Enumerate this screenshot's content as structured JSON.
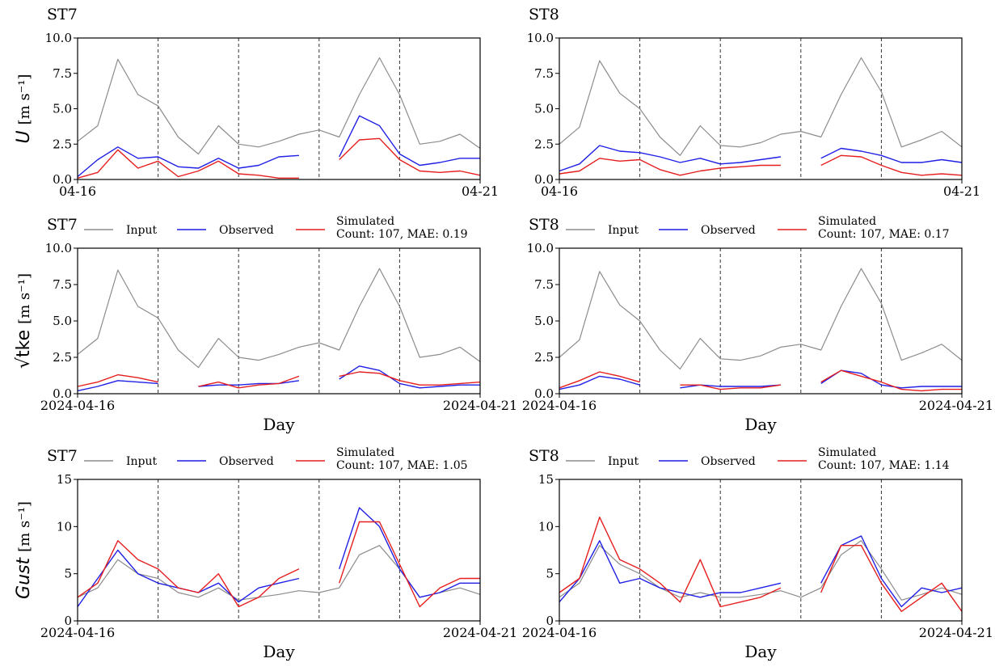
{
  "figure": {
    "x_start": "2024-04-16",
    "x_end": "2024-04-21",
    "vlines_days": [
      1,
      2,
      3,
      4
    ],
    "legend_labels": {
      "input": "Input",
      "observed": "Observed",
      "simulated": "Simulated"
    },
    "colors": {
      "input": "#8c8c8c",
      "observed": "#1f1fe6",
      "simulated": "#e61e1e",
      "frame": "#000000",
      "vline": "#333333"
    }
  },
  "chart_data": [
    {
      "type": "line",
      "row": 0,
      "col": 0,
      "title": "ST7",
      "ylabel_main": "U",
      "ylabel_unit": "[m s⁻¹]",
      "ylim": [
        0,
        10
      ],
      "yticks": [
        "0.0",
        "2.5",
        "5.0",
        "7.5",
        "10.0"
      ],
      "xtick_left": "04-16",
      "xtick_right": "04-21",
      "xlabel": "",
      "legend": false,
      "legend_stats": "",
      "series": [
        {
          "key": "input",
          "x": [
            0,
            0.25,
            0.5,
            0.75,
            1,
            1.25,
            1.5,
            1.75,
            2,
            2.25,
            2.5,
            2.75,
            3,
            3.25,
            3.5,
            3.75,
            4,
            4.25,
            4.5,
            4.75,
            5
          ],
          "y": [
            2.7,
            3.8,
            8.5,
            6.0,
            5.2,
            3.0,
            1.8,
            3.8,
            2.5,
            2.3,
            2.7,
            3.2,
            3.5,
            3.0,
            6.0,
            8.6,
            6.0,
            2.5,
            2.7,
            3.2,
            2.2
          ]
        },
        {
          "key": "observed",
          "x": [
            0,
            0.25,
            0.5,
            0.75,
            1,
            1.25,
            1.5,
            1.75,
            2,
            2.25,
            2.5,
            2.75,
            3,
            3.25,
            3.5,
            3.75,
            4,
            4.25,
            4.5,
            4.75,
            5
          ],
          "y": [
            0.2,
            1.4,
            2.3,
            1.5,
            1.6,
            0.9,
            0.8,
            1.5,
            0.8,
            1.0,
            1.6,
            1.7,
            null,
            1.6,
            4.5,
            3.8,
            1.8,
            1.0,
            1.2,
            1.5,
            1.5
          ]
        },
        {
          "key": "simulated",
          "x": [
            0,
            0.25,
            0.5,
            0.75,
            1,
            1.25,
            1.5,
            1.75,
            2,
            2.25,
            2.5,
            2.75,
            3,
            3.25,
            3.5,
            3.75,
            4,
            4.25,
            4.5,
            4.75,
            5
          ],
          "y": [
            0.1,
            0.5,
            2.1,
            0.8,
            1.3,
            0.2,
            0.6,
            1.3,
            0.4,
            0.3,
            0.1,
            0.1,
            null,
            1.4,
            2.8,
            2.9,
            1.4,
            0.6,
            0.5,
            0.6,
            0.3
          ]
        }
      ]
    },
    {
      "type": "line",
      "row": 0,
      "col": 1,
      "title": "ST8",
      "ylabel_main": "",
      "ylabel_unit": "",
      "ylim": [
        0,
        10
      ],
      "yticks": [
        "0.0",
        "2.5",
        "5.0",
        "7.5",
        "10.0"
      ],
      "xtick_left": "04-16",
      "xtick_right": "04-21",
      "xlabel": "",
      "legend": false,
      "legend_stats": "",
      "series": [
        {
          "key": "input",
          "x": [
            0,
            0.25,
            0.5,
            0.75,
            1,
            1.25,
            1.5,
            1.75,
            2,
            2.25,
            2.5,
            2.75,
            3,
            3.25,
            3.5,
            3.75,
            4,
            4.25,
            4.5,
            4.75,
            5
          ],
          "y": [
            2.5,
            3.7,
            8.4,
            6.1,
            5.0,
            3.0,
            1.7,
            3.8,
            2.4,
            2.3,
            2.6,
            3.2,
            3.4,
            3.0,
            6.0,
            8.6,
            6.2,
            2.3,
            2.8,
            3.4,
            2.3
          ]
        },
        {
          "key": "observed",
          "x": [
            0,
            0.25,
            0.5,
            0.75,
            1,
            1.25,
            1.5,
            1.75,
            2,
            2.25,
            2.5,
            2.75,
            3,
            3.25,
            3.5,
            3.75,
            4,
            4.25,
            4.5,
            4.75,
            5
          ],
          "y": [
            0.6,
            1.1,
            2.4,
            2.0,
            1.9,
            1.6,
            1.2,
            1.5,
            1.1,
            1.2,
            1.4,
            1.6,
            null,
            1.5,
            2.2,
            2.0,
            1.7,
            1.2,
            1.2,
            1.4,
            1.2
          ]
        },
        {
          "key": "simulated",
          "x": [
            0,
            0.25,
            0.5,
            0.75,
            1,
            1.25,
            1.5,
            1.75,
            2,
            2.25,
            2.5,
            2.75,
            3,
            3.25,
            3.5,
            3.75,
            4,
            4.25,
            4.5,
            4.75,
            5
          ],
          "y": [
            0.4,
            0.6,
            1.5,
            1.3,
            1.4,
            0.7,
            0.3,
            0.6,
            0.8,
            0.9,
            1.0,
            1.0,
            null,
            1.0,
            1.7,
            1.6,
            1.0,
            0.5,
            0.3,
            0.4,
            0.3
          ]
        }
      ]
    },
    {
      "type": "line",
      "row": 1,
      "col": 0,
      "title": "ST7",
      "ylabel_main": "√tke",
      "ylabel_unit": "[m s⁻¹]",
      "ylim": [
        0,
        10
      ],
      "yticks": [
        "0.0",
        "2.5",
        "5.0",
        "7.5",
        "10.0"
      ],
      "xtick_left": "2024-04-16",
      "xtick_right": "2024-04-21",
      "xlabel": "Day",
      "legend": true,
      "legend_stats": "Count: 107, MAE: 0.19",
      "series": [
        {
          "key": "input",
          "x": [
            0,
            0.25,
            0.5,
            0.75,
            1,
            1.25,
            1.5,
            1.75,
            2,
            2.25,
            2.5,
            2.75,
            3,
            3.25,
            3.5,
            3.75,
            4,
            4.25,
            4.5,
            4.75,
            5
          ],
          "y": [
            2.7,
            3.8,
            8.5,
            6.0,
            5.2,
            3.0,
            1.8,
            3.8,
            2.5,
            2.3,
            2.7,
            3.2,
            3.5,
            3.0,
            6.0,
            8.6,
            6.0,
            2.5,
            2.7,
            3.2,
            2.2
          ]
        },
        {
          "key": "observed",
          "x": [
            0,
            0.25,
            0.5,
            0.75,
            1,
            1.25,
            1.5,
            1.75,
            2,
            2.25,
            2.5,
            2.75,
            3,
            3.25,
            3.5,
            3.75,
            4,
            4.25,
            4.5,
            4.75,
            5
          ],
          "y": [
            0.2,
            0.5,
            0.9,
            0.8,
            0.7,
            null,
            0.5,
            0.6,
            0.6,
            0.7,
            0.7,
            0.9,
            null,
            1.0,
            1.9,
            1.6,
            0.7,
            0.4,
            0.5,
            0.6,
            0.6
          ]
        },
        {
          "key": "simulated",
          "x": [
            0,
            0.25,
            0.5,
            0.75,
            1,
            1.25,
            1.5,
            1.75,
            2,
            2.25,
            2.5,
            2.75,
            3,
            3.25,
            3.5,
            3.75,
            4,
            4.25,
            4.5,
            4.75,
            5
          ],
          "y": [
            0.5,
            0.8,
            1.3,
            1.1,
            0.8,
            null,
            0.5,
            0.8,
            0.4,
            0.6,
            0.7,
            1.2,
            null,
            1.2,
            1.5,
            1.4,
            0.9,
            0.6,
            0.6,
            0.7,
            0.8
          ]
        }
      ]
    },
    {
      "type": "line",
      "row": 1,
      "col": 1,
      "title": "ST8",
      "ylabel_main": "",
      "ylabel_unit": "",
      "ylim": [
        0,
        10
      ],
      "yticks": [
        "0.0",
        "2.5",
        "5.0",
        "7.5",
        "10.0"
      ],
      "xtick_left": "2024-04-16",
      "xtick_right": "2024-04-21",
      "xlabel": "Day",
      "legend": true,
      "legend_stats": "Count: 107, MAE: 0.17",
      "series": [
        {
          "key": "input",
          "x": [
            0,
            0.25,
            0.5,
            0.75,
            1,
            1.25,
            1.5,
            1.75,
            2,
            2.25,
            2.5,
            2.75,
            3,
            3.25,
            3.5,
            3.75,
            4,
            4.25,
            4.5,
            4.75,
            5
          ],
          "y": [
            2.5,
            3.7,
            8.4,
            6.1,
            5.0,
            3.0,
            1.7,
            3.8,
            2.4,
            2.3,
            2.6,
            3.2,
            3.4,
            3.0,
            6.0,
            8.6,
            6.2,
            2.3,
            2.8,
            3.4,
            2.3
          ]
        },
        {
          "key": "observed",
          "x": [
            0,
            0.25,
            0.5,
            0.75,
            1,
            1.25,
            1.5,
            1.75,
            2,
            2.25,
            2.5,
            2.75,
            3,
            3.25,
            3.5,
            3.75,
            4,
            4.25,
            4.5,
            4.75,
            5
          ],
          "y": [
            0.3,
            0.6,
            1.2,
            1.0,
            0.6,
            null,
            0.4,
            0.6,
            0.5,
            0.5,
            0.5,
            0.6,
            null,
            0.7,
            1.6,
            1.4,
            0.6,
            0.4,
            0.5,
            0.5,
            0.5
          ]
        },
        {
          "key": "simulated",
          "x": [
            0,
            0.25,
            0.5,
            0.75,
            1,
            1.25,
            1.5,
            1.75,
            2,
            2.25,
            2.5,
            2.75,
            3,
            3.25,
            3.5,
            3.75,
            4,
            4.25,
            4.5,
            4.75,
            5
          ],
          "y": [
            0.4,
            0.9,
            1.5,
            1.2,
            0.8,
            null,
            0.6,
            0.6,
            0.3,
            0.4,
            0.4,
            0.6,
            null,
            0.8,
            1.6,
            1.2,
            0.8,
            0.3,
            0.2,
            0.3,
            0.3
          ]
        }
      ]
    },
    {
      "type": "line",
      "row": 2,
      "col": 0,
      "title": "ST7",
      "ylabel_main": "Gust",
      "ylabel_unit": "[m s⁻¹]",
      "ylim": [
        0,
        15
      ],
      "yticks": [
        "0",
        "5",
        "10",
        "15"
      ],
      "xtick_left": "2024-04-16",
      "xtick_right": "2024-04-21",
      "xlabel": "Day",
      "legend": true,
      "legend_stats": "Count: 107, MAE: 1.05",
      "series": [
        {
          "key": "input",
          "x": [
            0,
            0.25,
            0.5,
            0.75,
            1,
            1.25,
            1.5,
            1.75,
            2,
            2.25,
            2.5,
            2.75,
            3,
            3.25,
            3.5,
            3.75,
            4,
            4.25,
            4.5,
            4.75,
            5
          ],
          "y": [
            2.5,
            3.5,
            6.5,
            5.0,
            4.5,
            3.0,
            2.5,
            3.5,
            2.2,
            2.5,
            2.8,
            3.2,
            3.0,
            3.5,
            7.0,
            8.0,
            5.5,
            2.5,
            3.0,
            3.5,
            2.8
          ]
        },
        {
          "key": "observed",
          "x": [
            0,
            0.25,
            0.5,
            0.75,
            1,
            1.25,
            1.5,
            1.75,
            2,
            2.25,
            2.5,
            2.75,
            3,
            3.25,
            3.5,
            3.75,
            4,
            4.25,
            4.5,
            4.75,
            5
          ],
          "y": [
            1.5,
            4.5,
            7.5,
            5.0,
            4.0,
            3.5,
            3.0,
            4.0,
            2.0,
            3.5,
            4.0,
            4.5,
            null,
            5.5,
            12.0,
            10.0,
            5.5,
            2.5,
            3.0,
            4.0,
            4.0
          ]
        },
        {
          "key": "simulated",
          "x": [
            0,
            0.25,
            0.5,
            0.75,
            1,
            1.25,
            1.5,
            1.75,
            2,
            2.25,
            2.5,
            2.75,
            3,
            3.25,
            3.5,
            3.75,
            4,
            4.25,
            4.5,
            4.75,
            5
          ],
          "y": [
            2.5,
            4.0,
            8.5,
            6.5,
            5.5,
            3.5,
            3.0,
            5.0,
            1.5,
            2.5,
            4.5,
            5.5,
            null,
            4.0,
            10.5,
            10.5,
            6.0,
            1.5,
            3.5,
            4.5,
            4.5
          ]
        }
      ]
    },
    {
      "type": "line",
      "row": 2,
      "col": 1,
      "title": "ST8",
      "ylabel_main": "",
      "ylabel_unit": "",
      "ylim": [
        0,
        15
      ],
      "yticks": [
        "0",
        "5",
        "10",
        "15"
      ],
      "xtick_left": "2024-04-16",
      "xtick_right": "2024-04-21",
      "xlabel": "Day",
      "legend": true,
      "legend_stats": "Count: 107, MAE: 1.14",
      "series": [
        {
          "key": "input",
          "x": [
            0,
            0.25,
            0.5,
            0.75,
            1,
            1.25,
            1.5,
            1.75,
            2,
            2.25,
            2.5,
            2.75,
            3,
            3.25,
            3.5,
            3.75,
            4,
            4.25,
            4.5,
            4.75,
            5
          ],
          "y": [
            2.5,
            4.0,
            8.0,
            6.0,
            5.0,
            3.5,
            2.5,
            3.0,
            2.5,
            2.5,
            2.8,
            3.2,
            2.5,
            3.5,
            7.0,
            8.5,
            5.5,
            2.2,
            2.8,
            3.5,
            2.8
          ]
        },
        {
          "key": "observed",
          "x": [
            0,
            0.25,
            0.5,
            0.75,
            1,
            1.25,
            1.5,
            1.75,
            2,
            2.25,
            2.5,
            2.75,
            3,
            3.25,
            3.5,
            3.75,
            4,
            4.25,
            4.5,
            4.75,
            5
          ],
          "y": [
            2.0,
            4.5,
            8.5,
            4.0,
            4.5,
            3.5,
            3.0,
            2.5,
            3.0,
            3.0,
            3.5,
            4.0,
            null,
            4.0,
            8.0,
            9.0,
            4.5,
            1.5,
            3.5,
            3.0,
            3.5
          ]
        },
        {
          "key": "simulated",
          "x": [
            0,
            0.25,
            0.5,
            0.75,
            1,
            1.25,
            1.5,
            1.75,
            2,
            2.25,
            2.5,
            2.75,
            3,
            3.25,
            3.5,
            3.75,
            4,
            4.25,
            4.5,
            4.75,
            5
          ],
          "y": [
            3.0,
            4.5,
            11.0,
            6.5,
            5.5,
            4.0,
            2.0,
            6.5,
            1.5,
            2.0,
            2.5,
            3.5,
            null,
            3.0,
            8.0,
            8.0,
            4.0,
            1.0,
            2.5,
            4.0,
            1.0
          ]
        }
      ]
    }
  ]
}
